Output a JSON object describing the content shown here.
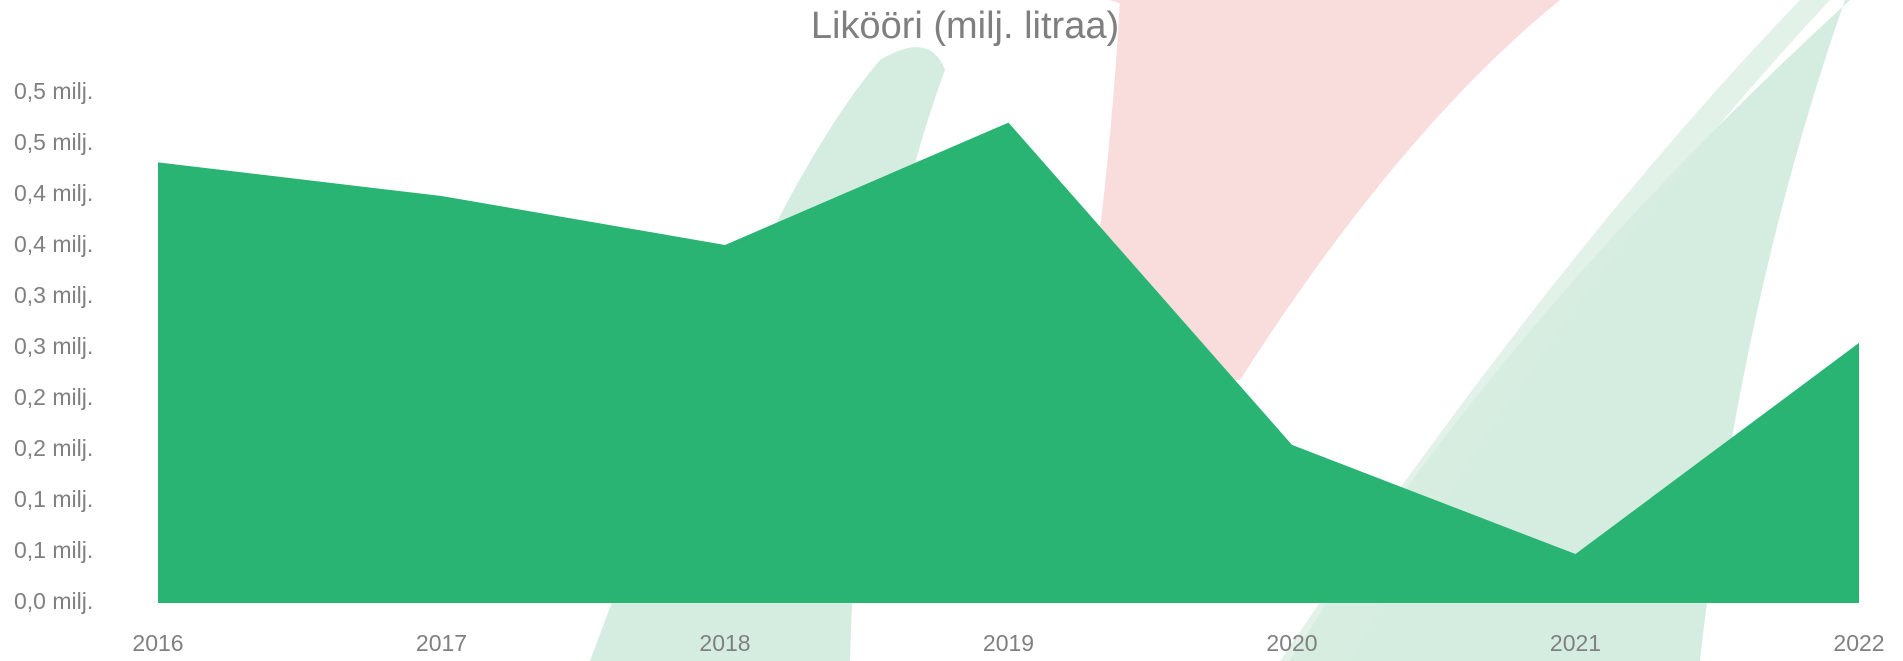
{
  "chart_data": {
    "type": "area",
    "title": "Likööri (milj. litraa)",
    "categories": [
      "2016",
      "2017",
      "2018",
      "2019",
      "2020",
      "2021",
      "2022"
    ],
    "values": [
      432000,
      399000,
      351000,
      471000,
      155000,
      48000,
      255000
    ],
    "color": "#29b473",
    "ylim": [
      0,
      500000
    ],
    "yticks": [
      {
        "value": 0,
        "label": "0,0 milj."
      },
      {
        "value": 50000,
        "label": "0,1 milj."
      },
      {
        "value": 100000,
        "label": "0,1 milj."
      },
      {
        "value": 150000,
        "label": "0,2 milj."
      },
      {
        "value": 200000,
        "label": "0,2 milj."
      },
      {
        "value": 250000,
        "label": "0,3 milj."
      },
      {
        "value": 300000,
        "label": "0,3 milj."
      },
      {
        "value": 350000,
        "label": "0,4 milj."
      },
      {
        "value": 400000,
        "label": "0,4 milj."
      },
      {
        "value": 450000,
        "label": "0,5 milj."
      },
      {
        "value": 500000,
        "label": "0,5 milj."
      }
    ],
    "grid": false
  }
}
